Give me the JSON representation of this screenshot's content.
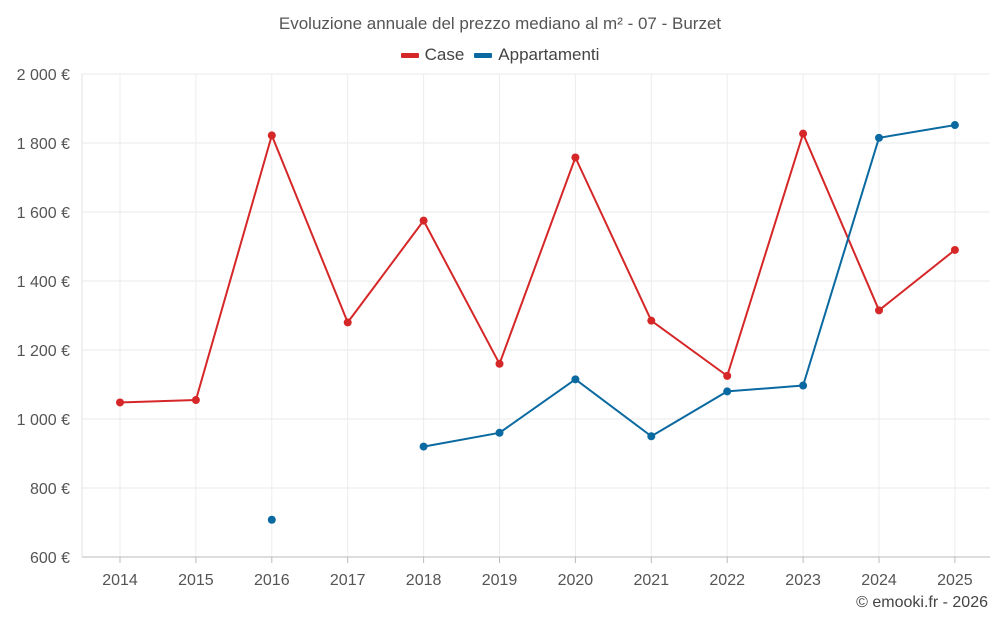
{
  "chart_data": {
    "type": "line",
    "title": "Evoluzione annuale del prezzo mediano al m² - 07 - Burzet",
    "categories": [
      "2014",
      "2015",
      "2016",
      "2017",
      "2018",
      "2019",
      "2020",
      "2021",
      "2022",
      "2023",
      "2024",
      "2025"
    ],
    "ylim": [
      600,
      2000
    ],
    "yticks": [
      600,
      800,
      1000,
      1200,
      1400,
      1600,
      1800,
      2000
    ],
    "ytick_labels": [
      "600 €",
      "800 €",
      "1 000 €",
      "1 200 €",
      "1 400 €",
      "1 600 €",
      "1 800 €",
      "2 000 €"
    ],
    "grid": true,
    "legend_position": "top-center",
    "series": [
      {
        "name": "Case",
        "color": "#d62728",
        "values": [
          1048,
          1055,
          1822,
          1280,
          1575,
          1160,
          1758,
          1285,
          1125,
          1827,
          1315,
          1490
        ]
      },
      {
        "name": "Appartamenti",
        "color": "#0a69a0",
        "values": [
          null,
          null,
          708,
          null,
          920,
          960,
          1115,
          950,
          1080,
          1097,
          1815,
          1852
        ]
      }
    ]
  },
  "credit": "© emooki.fr - 2026"
}
